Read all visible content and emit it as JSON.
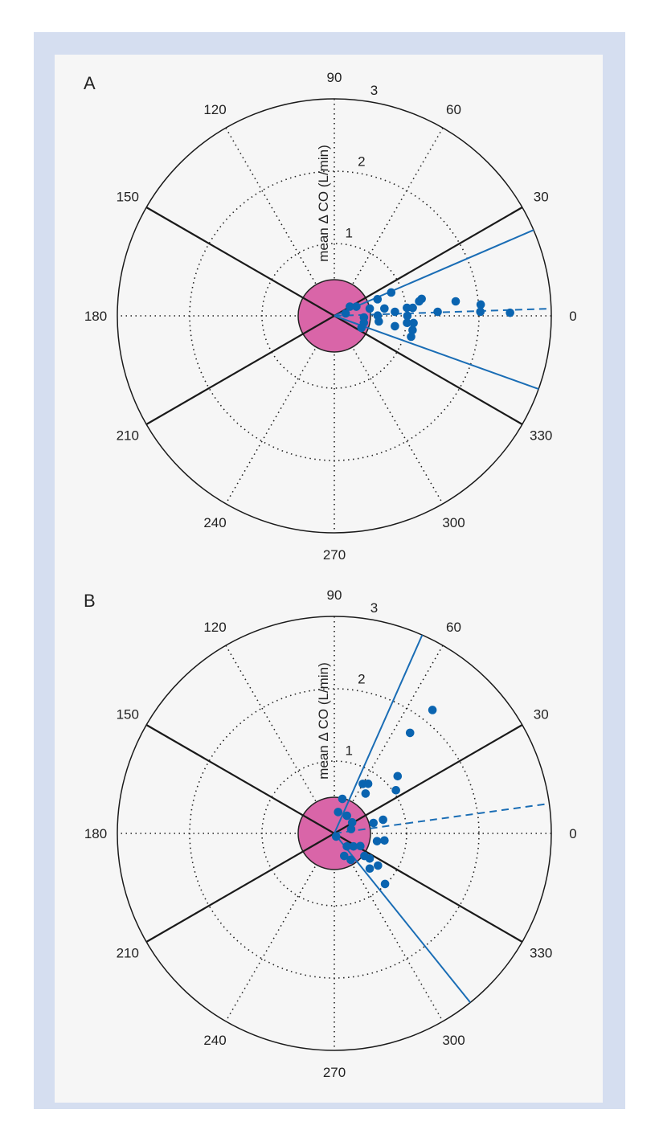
{
  "chart_data": [
    {
      "type": "scatter",
      "coordinate_system": "polar",
      "panel_label": "A",
      "radial_label": "mean Δ CO (L/min)",
      "radial_range": [
        0,
        3
      ],
      "radial_ticks": [
        "1",
        "2",
        "3"
      ],
      "angular_ticks": [
        "0",
        "30",
        "60",
        "90",
        "120",
        "150",
        "180",
        "210",
        "240",
        "270",
        "300",
        "330"
      ],
      "grid": true,
      "exclusion_zone_radius": 0.5,
      "limit_lines_deg": [
        30,
        150,
        210,
        330
      ],
      "mean_angle_deg": 1.9,
      "limits_of_agreement_deg": [
        23.3,
        340.3
      ],
      "points": [
        {
          "angle": 22.3,
          "r": 0.85
        },
        {
          "angle": 21.0,
          "r": 0.64
        },
        {
          "angle": 11.0,
          "r": 1.23
        },
        {
          "angle": 9.7,
          "r": 1.19
        },
        {
          "angle": 6.8,
          "r": 1.69
        },
        {
          "angle": 4.4,
          "r": 2.03
        },
        {
          "angle": 1.6,
          "r": 2.02
        },
        {
          "angle": 1.0,
          "r": 2.43
        },
        {
          "angle": 2.2,
          "r": 1.43
        },
        {
          "angle": 6.3,
          "r": 1.01
        },
        {
          "angle": 5.8,
          "r": 1.09
        },
        {
          "angle": 3.8,
          "r": 0.84
        },
        {
          "angle": 8.3,
          "r": 0.7
        },
        {
          "angle": 11.6,
          "r": 0.5
        },
        {
          "angle": 0.3,
          "r": 0.6
        },
        {
          "angle": 352.8,
          "r": 0.62
        },
        {
          "angle": 0.0,
          "r": 1.01
        },
        {
          "angle": 354.5,
          "r": 1.01
        },
        {
          "angle": 354.8,
          "r": 1.1
        },
        {
          "angle": 349.7,
          "r": 1.1
        },
        {
          "angle": 344.8,
          "r": 1.1
        },
        {
          "angle": 350.3,
          "r": 0.85
        },
        {
          "angle": 336.2,
          "r": 0.41
        },
        {
          "angle": 22.7,
          "r": 0.33
        },
        {
          "angle": 30.7,
          "r": 0.25
        },
        {
          "angle": 12.0,
          "r": 0.16
        },
        {
          "angle": 356.9,
          "r": 0.41
        },
        {
          "angle": 346.8,
          "r": 0.42
        }
      ]
    },
    {
      "type": "scatter",
      "coordinate_system": "polar",
      "panel_label": "B",
      "radial_label": "mean Δ CO (L/min)",
      "radial_range": [
        0,
        3
      ],
      "radial_ticks": [
        "1",
        "2",
        "3"
      ],
      "angular_ticks": [
        "0",
        "30",
        "60",
        "90",
        "120",
        "150",
        "180",
        "210",
        "240",
        "270",
        "300",
        "330"
      ],
      "grid": true,
      "exclusion_zone_radius": 0.5,
      "limit_lines_deg": [
        30,
        150,
        210,
        330
      ],
      "mean_angle_deg": 7.9,
      "limits_of_agreement_deg": [
        66.1,
        308.8
      ],
      "points": [
        {
          "angle": 51.5,
          "r": 2.18
        },
        {
          "angle": 53.0,
          "r": 1.74
        },
        {
          "angle": 42.1,
          "r": 1.18
        },
        {
          "angle": 35.0,
          "r": 1.04
        },
        {
          "angle": 60.1,
          "r": 0.79
        },
        {
          "angle": 55.7,
          "r": 0.83
        },
        {
          "angle": 51.9,
          "r": 0.7
        },
        {
          "angle": 76.9,
          "r": 0.49
        },
        {
          "angle": 79.9,
          "r": 0.3
        },
        {
          "angle": 54.5,
          "r": 0.3
        },
        {
          "angle": 31.6,
          "r": 0.29
        },
        {
          "angle": 14.4,
          "r": 0.24
        },
        {
          "angle": 14.9,
          "r": 0.56
        },
        {
          "angle": 15.6,
          "r": 0.7
        },
        {
          "angle": 349.7,
          "r": 0.6
        },
        {
          "angle": 352.0,
          "r": 0.7
        },
        {
          "angle": 300.0,
          "r": 0.05
        },
        {
          "angle": 314.0,
          "r": 0.25
        },
        {
          "angle": 325.8,
          "r": 0.32
        },
        {
          "angle": 334.0,
          "r": 0.4
        },
        {
          "angle": 293.7,
          "r": 0.34
        },
        {
          "angle": 302.0,
          "r": 0.43
        },
        {
          "angle": 323.1,
          "r": 0.52
        },
        {
          "angle": 324.6,
          "r": 0.6
        },
        {
          "angle": 315.2,
          "r": 0.69
        },
        {
          "angle": 323.6,
          "r": 0.75
        },
        {
          "angle": 315.1,
          "r": 0.99
        }
      ]
    }
  ],
  "colors": {
    "points": "#0a64b0",
    "agreement_lines": "#1a6db5",
    "limit_lines": "#1a1a1a",
    "exclusion_zone": "#d965a8",
    "frame": "#d5def0",
    "background": "#f6f6f6"
  }
}
